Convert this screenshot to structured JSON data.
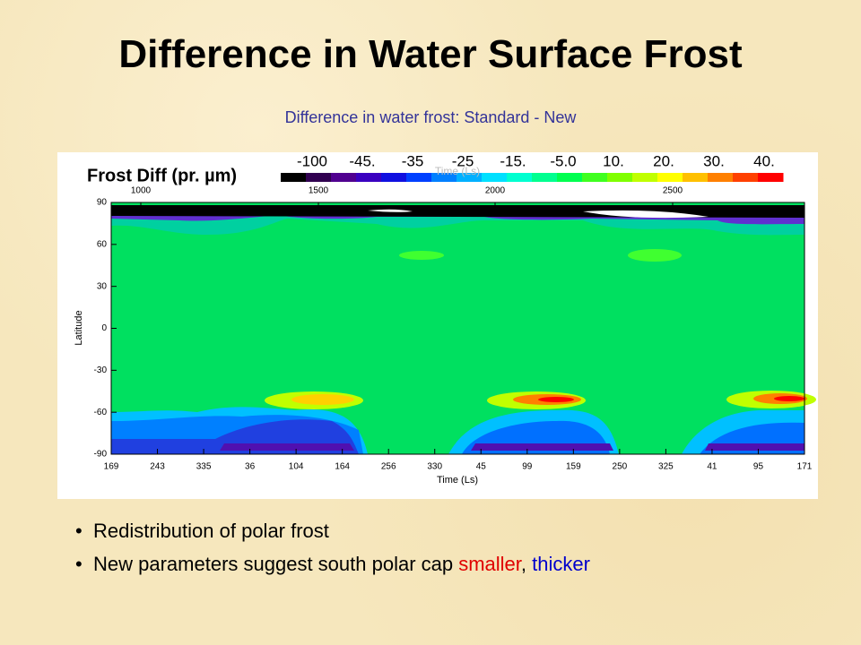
{
  "header": {
    "title": "Difference in Water Surface Frost",
    "subtitle": "Difference in water frost: Standard - New"
  },
  "plot": {
    "colorbar_title": "Frost Diff (pr. µm)",
    "colorbar_labels": [
      "-100",
      "-45.",
      "-35",
      "-25",
      "-15.",
      "-5.0",
      "10.",
      "20.",
      "30.",
      "40."
    ],
    "top_axis_labels": [
      "1000",
      "1500",
      "2000",
      "2500"
    ],
    "y_axis_title": "Latitude",
    "y_tick_labels": [
      "90",
      "60",
      "30",
      "0",
      "-30",
      "-60",
      "-90"
    ],
    "x_axis_title": "Time (Ls)",
    "x_tick_labels": [
      "169",
      "243",
      "335",
      "36",
      "104",
      "164",
      "256",
      "330",
      "45",
      "99",
      "159",
      "250",
      "325",
      "41",
      "95",
      "171"
    ]
  },
  "bullets": [
    {
      "text": "Redistribution of polar frost"
    },
    {
      "text": "New parameters suggest south polar cap ",
      "red": "smaller",
      "sep": ",",
      "blue": "thicker"
    }
  ]
}
